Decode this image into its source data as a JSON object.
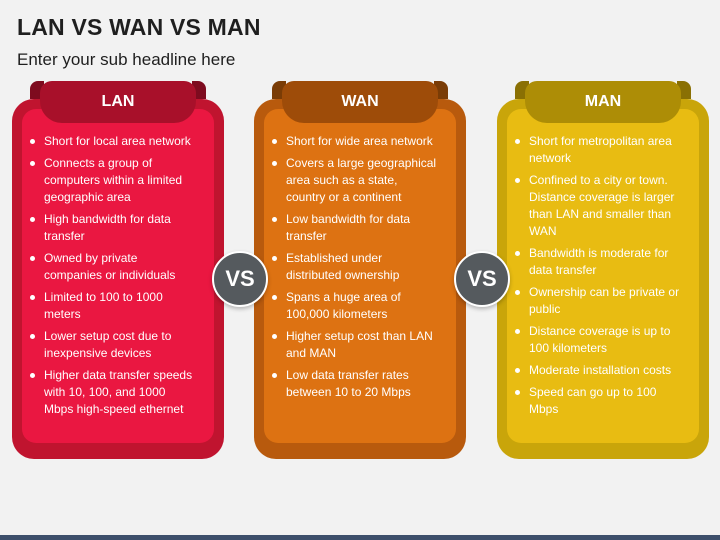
{
  "title": "LAN VS WAN VS MAN",
  "subtitle": "Enter your sub headline here",
  "vs_label": "VS",
  "colors": {
    "lan_outer": "#c0142f",
    "lan_inner": "#ea1741",
    "lan_tab": "#a8102a",
    "wan_outer": "#b85a0d",
    "wan_inner": "#dd7212",
    "wan_tab": "#9e4c09",
    "man_outer": "#c9a50a",
    "man_inner": "#e8bc12",
    "man_tab": "#ad8d06",
    "vs_circle": "#555a5e"
  },
  "columns": [
    {
      "label": "LAN",
      "items": [
        "Short for local area network",
        "Connects a group of computers within a limited geographic area",
        "High bandwidth for data transfer",
        "Owned by private companies or individuals",
        "Limited to 100 to 1000 meters",
        "Lower setup cost due to inexpensive devices",
        "Higher data transfer speeds with 10, 100, and 1000 Mbps high-speed ethernet"
      ]
    },
    {
      "label": "WAN",
      "items": [
        "Short for wide area network",
        "Covers a large geographical area such as a state, country or a continent",
        "Low bandwidth for data transfer",
        "Established under distributed ownership",
        "Spans a huge area of 100,000 kilometers",
        "Higher setup cost than LAN and MAN",
        "Low data transfer rates between 10 to 20 Mbps"
      ]
    },
    {
      "label": "MAN",
      "items": [
        "Short for metropolitan area network",
        "Confined to a city or town. Distance coverage is larger than LAN and smaller than WAN",
        "Bandwidth is moderate for data transfer",
        "Ownership can be private or public",
        "Distance coverage is up to 100 kilometers",
        "Moderate installation costs",
        "Speed can go up to 100 Mbps"
      ]
    }
  ]
}
